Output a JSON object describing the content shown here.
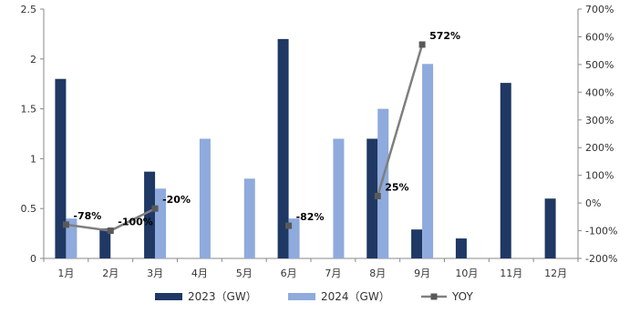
{
  "chart_data": {
    "type": "bar",
    "categories": [
      "1月",
      "2月",
      "3月",
      "4月",
      "5月",
      "6月",
      "7月",
      "8月",
      "9月",
      "10月",
      "11月",
      "12月"
    ],
    "series": [
      {
        "name": "2023（GW）",
        "type": "bar",
        "axis": "left",
        "color": "#1f3864",
        "values": [
          1.8,
          0.3,
          0.87,
          null,
          null,
          2.2,
          null,
          1.2,
          0.29,
          0.2,
          1.76,
          0.6
        ]
      },
      {
        "name": "2024（GW）",
        "type": "bar",
        "axis": "left",
        "color": "#8faadc",
        "values": [
          0.4,
          0.0,
          0.7,
          1.2,
          0.8,
          0.4,
          1.2,
          1.5,
          1.95,
          null,
          null,
          null
        ]
      },
      {
        "name": "YOY",
        "type": "line",
        "axis": "right",
        "color": "#7f7f7f",
        "values": [
          -78,
          -100,
          -20,
          null,
          null,
          -82,
          null,
          25,
          572,
          null,
          null,
          null
        ],
        "labels": [
          "-78%",
          "-100%",
          "-20%",
          null,
          null,
          "-82%",
          null,
          "25%",
          "572%",
          null,
          null,
          null
        ]
      }
    ],
    "ylim": [
      0,
      2.5
    ],
    "yticks": [
      "0",
      "0.5",
      "1",
      "1.5",
      "2",
      "2.5"
    ],
    "ylim_right": [
      -200,
      700
    ],
    "yticks_right": [
      "-200%",
      "-100%",
      "0%",
      "100%",
      "200%",
      "300%",
      "400%",
      "500%",
      "600%",
      "700%"
    ],
    "legend_position": "bottom",
    "grid": false
  }
}
